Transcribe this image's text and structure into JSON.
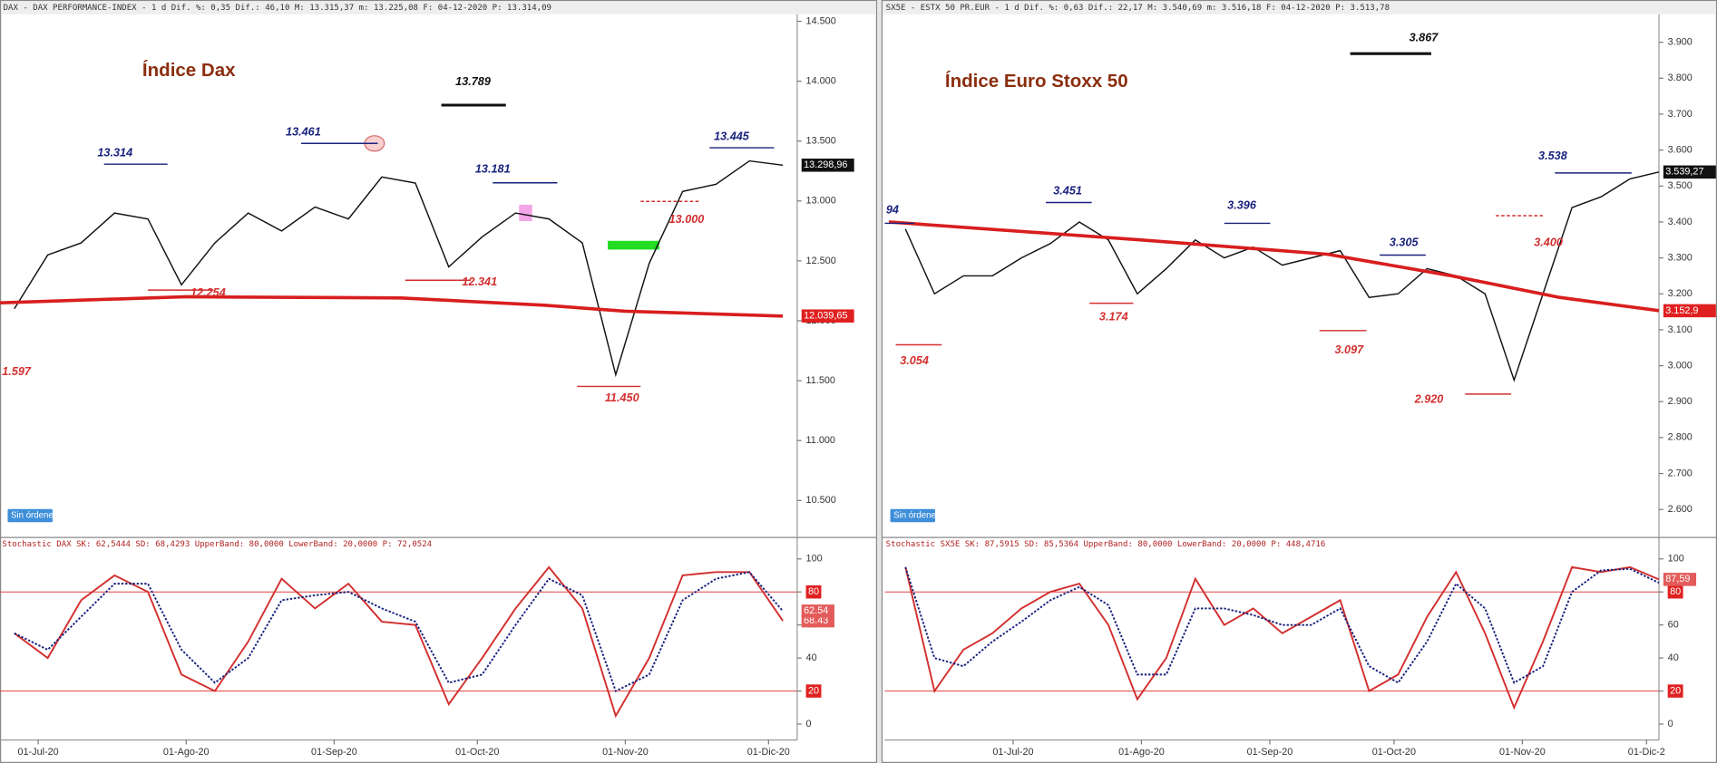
{
  "chart_data": [
    {
      "type": "line",
      "header": "DAX - DAX PERFORMANCE-INDEX -   1 d Dif. %: 0,35 Dif.: 46,10 M: 13.315,37 m: 13.225,08 F: 04-12-2020 P: 13.314,09",
      "title": "Índice Dax",
      "x": [
        "2020-06-26",
        "2020-07-03",
        "2020-07-10",
        "2020-07-17",
        "2020-07-24",
        "2020-07-31",
        "2020-08-07",
        "2020-08-14",
        "2020-08-21",
        "2020-08-28",
        "2020-09-04",
        "2020-09-11",
        "2020-09-18",
        "2020-09-25",
        "2020-10-02",
        "2020-10-09",
        "2020-10-16",
        "2020-10-23",
        "2020-10-30",
        "2020-11-06",
        "2020-11-13",
        "2020-11-20",
        "2020-11-27",
        "2020-12-04"
      ],
      "series": [
        {
          "color": "#111111",
          "values": [
            12100,
            12550,
            12650,
            12900,
            12850,
            12300,
            12650,
            12900,
            12750,
            12950,
            12850,
            13200,
            13150,
            12450,
            12700,
            12900,
            12850,
            12650,
            11550,
            12480,
            13080,
            13140,
            13335,
            13299
          ]
        },
        {
          "color": "#d81e1e",
          "x": [
            "2020-06-23",
            "2020-08-01",
            "2020-09-15",
            "2020-10-15",
            "2020-11-01",
            "2020-12-04"
          ],
          "values": [
            12150,
            12200,
            12190,
            12130,
            12080,
            12040
          ]
        }
      ],
      "xlim": [
        "2020-06-23",
        "2020-12-07"
      ],
      "ylim": [
        10200,
        14550
      ],
      "yticks": [
        {
          "value": 10500,
          "label": "10.500"
        },
        {
          "value": 11000,
          "label": "11.000"
        },
        {
          "value": 11500,
          "label": "11.500"
        },
        {
          "value": 12000,
          "label": "12.000"
        },
        {
          "value": 12500,
          "label": "12.500"
        },
        {
          "value": 13000,
          "label": "13.000"
        },
        {
          "value": 13500,
          "label": "13.500"
        },
        {
          "value": 14000,
          "label": "14.000"
        },
        {
          "value": 14500,
          "label": "14.500"
        }
      ],
      "annotations": [
        "13.314",
        "13.461",
        "13.789",
        "13.181",
        "13.445",
        "13.000",
        "12.341",
        "12.254",
        "11.450",
        "1.597"
      ],
      "badges": [
        "13.298,96",
        "12.039,65"
      ],
      "button": "Sin órdenes"
    },
    {
      "type": "line",
      "header": "Stochastic DAX SK: 62,5444 SD: 68,4293 UpperBand: 80,0000 LowerBand: 20,0000 P: 72,0524",
      "x": [
        "2020-06-26",
        "2020-07-03",
        "2020-07-10",
        "2020-07-17",
        "2020-07-24",
        "2020-07-31",
        "2020-08-07",
        "2020-08-14",
        "2020-08-21",
        "2020-08-28",
        "2020-09-04",
        "2020-09-11",
        "2020-09-18",
        "2020-09-25",
        "2020-10-02",
        "2020-10-09",
        "2020-10-16",
        "2020-10-23",
        "2020-10-30",
        "2020-11-06",
        "2020-11-13",
        "2020-11-20",
        "2020-11-27",
        "2020-12-04"
      ],
      "series": [
        {
          "color": "#d32f2f",
          "values": [
            55,
            40,
            75,
            90,
            80,
            30,
            20,
            50,
            88,
            70,
            85,
            62,
            60,
            12,
            40,
            70,
            95,
            70,
            5,
            40,
            90,
            92,
            92,
            62.5
          ]
        },
        {
          "color": "#1a237e",
          "dash": true,
          "values": [
            55,
            45,
            65,
            85,
            85,
            45,
            25,
            40,
            75,
            78,
            80,
            70,
            62,
            25,
            30,
            60,
            88,
            78,
            20,
            30,
            75,
            88,
            92,
            68.4
          ]
        }
      ],
      "bands": [
        80,
        20
      ],
      "badges": [
        "68.43",
        "62.54"
      ],
      "xlim": [
        "2020-06-23",
        "2020-12-07"
      ],
      "ylim": [
        -7,
        107
      ],
      "yticks": [
        0,
        20,
        40,
        60,
        80,
        100
      ],
      "xticks": [
        {
          "value": "2020-07-01",
          "label": "01-Jul-20"
        },
        {
          "value": "2020-08-01",
          "label": "01-Ago-20"
        },
        {
          "value": "2020-09-01",
          "label": "01-Sep-20"
        },
        {
          "value": "2020-10-01",
          "label": "01-Oct-20"
        },
        {
          "value": "2020-11-01",
          "label": "01-Nov-20"
        },
        {
          "value": "2020-12-01",
          "label": "01-Dic-20"
        }
      ]
    },
    {
      "type": "line",
      "header": "SX5E - ESTX 50 PR.EUR -   1 d Dif. %: 0,63 Dif.: 22,17 M: 3.540,69 m: 3.516,18 F: 04-12-2020 P: 3.513,78",
      "title": "Índice Euro Stoxx 50",
      "x": [
        "2020-06-05",
        "2020-06-12",
        "2020-06-19",
        "2020-06-26",
        "2020-07-03",
        "2020-07-10",
        "2020-07-17",
        "2020-07-24",
        "2020-07-31",
        "2020-08-07",
        "2020-08-14",
        "2020-08-21",
        "2020-08-28",
        "2020-09-04",
        "2020-09-11",
        "2020-09-18",
        "2020-09-25",
        "2020-10-02",
        "2020-10-09",
        "2020-10-16",
        "2020-10-23",
        "2020-10-30",
        "2020-11-06",
        "2020-11-13",
        "2020-11-20",
        "2020-11-27",
        "2020-12-04"
      ],
      "series": [
        {
          "color": "#111111",
          "values": [
            3380,
            3200,
            3250,
            3250,
            3300,
            3340,
            3400,
            3350,
            3200,
            3270,
            3350,
            3300,
            3330,
            3280,
            3300,
            3320,
            3190,
            3200,
            3270,
            3250,
            3200,
            2960,
            3200,
            3440,
            3470,
            3520,
            3539
          ]
        },
        {
          "color": "#d81e1e",
          "x": [
            "2020-06-01",
            "2020-08-01",
            "2020-09-15",
            "2020-10-15",
            "2020-11-10",
            "2020-12-04"
          ],
          "values": [
            3400,
            3350,
            3310,
            3250,
            3190,
            3153
          ]
        }
      ],
      "xlim": [
        "2020-05-31",
        "2020-12-04"
      ],
      "ylim": [
        2525,
        3975
      ],
      "yticks": [
        {
          "value": 2600,
          "label": "2.600"
        },
        {
          "value": 2700,
          "label": "2.700"
        },
        {
          "value": 2800,
          "label": "2.800"
        },
        {
          "value": 2900,
          "label": "2.900"
        },
        {
          "value": 3000,
          "label": "3.000"
        },
        {
          "value": 3100,
          "label": "3.100"
        },
        {
          "value": 3200,
          "label": "3.200"
        },
        {
          "value": 3300,
          "label": "3.300"
        },
        {
          "value": 3400,
          "label": "3.400"
        },
        {
          "value": 3500,
          "label": "3.500"
        },
        {
          "value": 3600,
          "label": "3.600"
        },
        {
          "value": 3700,
          "label": "3.700"
        },
        {
          "value": 3800,
          "label": "3.800"
        },
        {
          "value": 3900,
          "label": "3.900"
        }
      ],
      "annotations": [
        "3.867",
        "94",
        "3.054",
        "3.451",
        "3.174",
        "3.396",
        "3.097",
        "3.305",
        "2.920",
        "3.538",
        "3.400"
      ],
      "badges": [
        "3.539,27",
        "3.152,9"
      ],
      "button": "Sin órdenes"
    },
    {
      "type": "line",
      "header": "Stochastic SX5E SK: 87,5915 SD: 85,5364 UpperBand: 80,0000 LowerBand: 20,0000 P: 448,4716",
      "x": [
        "2020-06-05",
        "2020-06-12",
        "2020-06-19",
        "2020-06-26",
        "2020-07-03",
        "2020-07-10",
        "2020-07-17",
        "2020-07-24",
        "2020-07-31",
        "2020-08-07",
        "2020-08-14",
        "2020-08-21",
        "2020-08-28",
        "2020-09-04",
        "2020-09-11",
        "2020-09-18",
        "2020-09-25",
        "2020-10-02",
        "2020-10-09",
        "2020-10-16",
        "2020-10-23",
        "2020-10-30",
        "2020-11-06",
        "2020-11-13",
        "2020-11-20",
        "2020-11-27",
        "2020-12-04"
      ],
      "series": [
        {
          "color": "#d32f2f",
          "values": [
            95,
            20,
            45,
            55,
            70,
            80,
            85,
            60,
            15,
            40,
            88,
            60,
            70,
            55,
            65,
            75,
            20,
            30,
            65,
            92,
            55,
            10,
            50,
            95,
            92,
            95,
            87.6
          ]
        },
        {
          "color": "#1a237e",
          "dash": true,
          "values": [
            95,
            40,
            35,
            50,
            62,
            75,
            83,
            72,
            30,
            30,
            70,
            70,
            66,
            60,
            60,
            70,
            35,
            25,
            50,
            85,
            70,
            25,
            35,
            80,
            93,
            94,
            85.5
          ]
        }
      ],
      "bands": [
        80,
        20
      ],
      "badges": [
        "87,59"
      ],
      "xlim": [
        "2020-05-31",
        "2020-12-04"
      ],
      "ylim": [
        -7,
        107
      ],
      "yticks": [
        0,
        20,
        40,
        60,
        80,
        100
      ],
      "xticks": [
        {
          "value": "2020-07-01",
          "label": "01-Jul-20"
        },
        {
          "value": "2020-08-01",
          "label": "01-Ago-20"
        },
        {
          "value": "2020-09-01",
          "label": "01-Sep-20"
        },
        {
          "value": "2020-10-01",
          "label": "01-Oct-20"
        },
        {
          "value": "2020-11-01",
          "label": "01-Nov-20"
        },
        {
          "value": "2020-12-01",
          "label": "01-Dic-2"
        }
      ]
    }
  ]
}
